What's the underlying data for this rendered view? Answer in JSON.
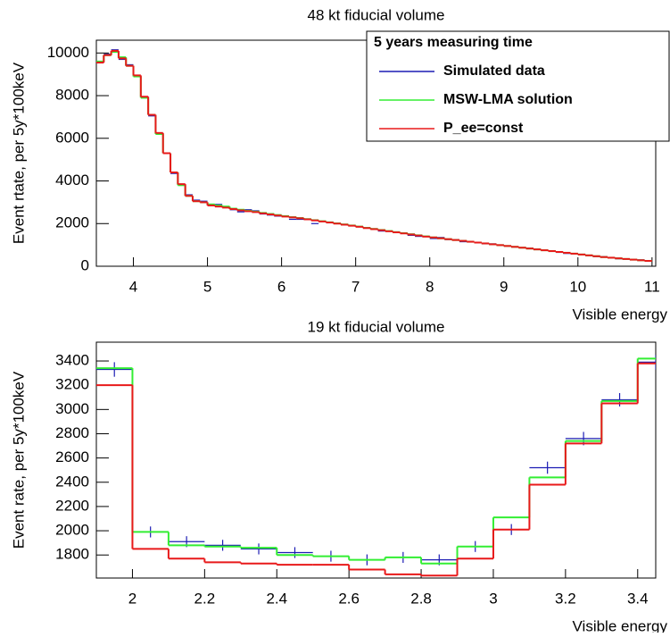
{
  "chart_data": [
    {
      "type": "histogram",
      "title": "48 kt fiducial volume",
      "x_label": "Visible energy",
      "y_label": "Event rtate, per 5y*100keV",
      "legend_title": "5 years measuring time",
      "legend": "upper right",
      "xlim": [
        3.5,
        11.05
      ],
      "ylim": [
        0,
        10600
      ],
      "xticks": [
        4,
        5,
        6,
        7,
        8,
        9,
        10,
        11
      ],
      "yticks": [
        0,
        2000,
        4000,
        6000,
        8000,
        10000
      ],
      "bins": [
        3.5,
        3.6,
        3.7,
        3.8,
        3.9,
        4.0,
        4.1,
        4.2,
        4.3,
        4.4,
        4.5,
        4.6,
        4.7,
        4.8,
        4.9,
        5.0,
        5.1,
        5.2,
        5.3,
        5.4,
        5.5,
        5.6,
        5.7,
        5.8,
        5.9,
        6.0,
        6.1,
        6.2,
        6.3,
        6.4,
        6.5,
        6.6,
        6.7,
        6.8,
        6.9,
        7.0,
        7.1,
        7.2,
        7.3,
        7.4,
        7.5,
        7.6,
        7.7,
        7.8,
        7.9,
        8.0,
        8.1,
        8.2,
        8.3,
        8.4,
        8.5,
        8.6,
        8.7,
        8.8,
        8.9,
        9.0,
        9.1,
        9.2,
        9.3,
        9.4,
        9.5,
        9.6,
        9.7,
        9.8,
        9.9,
        10.0,
        10.1,
        10.2,
        10.3,
        10.4,
        10.5,
        10.6,
        10.7,
        10.8,
        10.9,
        11.0
      ],
      "series": [
        {
          "name": "Simulated data",
          "color": "#1c1cb4",
          "style": "markers",
          "values": [
            9550,
            9950,
            10150,
            9700,
            9450,
            8900,
            7950,
            7050,
            6200,
            5300,
            4350,
            3850,
            3350,
            3100,
            3050,
            2850,
            2900,
            2800,
            2650,
            2550,
            2650,
            2600,
            2450,
            2400,
            2350,
            2350,
            2200,
            2200,
            2200,
            2000,
            2100,
            2050,
            2000,
            1950,
            1900,
            1850,
            1800,
            1750,
            1650,
            1650,
            1600,
            1550,
            1450,
            1400,
            1400,
            1300,
            1350,
            1250,
            1250,
            1150,
            1150,
            1100,
            1050,
            1050,
            1000,
            950,
            900,
            870,
            850,
            800,
            750,
            700,
            650,
            600,
            600,
            550,
            500,
            450,
            450,
            400,
            350,
            350,
            300,
            300,
            250
          ]
        },
        {
          "name": "MSW-LMA solution",
          "color": "#33ee33",
          "style": "step",
          "values": [
            9600,
            9900,
            10050,
            9800,
            9400,
            8900,
            7900,
            7100,
            6200,
            5300,
            4400,
            3800,
            3300,
            3050,
            3000,
            2900,
            2850,
            2800,
            2700,
            2650,
            2600,
            2560,
            2500,
            2450,
            2400,
            2350,
            2300,
            2260,
            2210,
            2160,
            2110,
            2060,
            2010,
            1960,
            1910,
            1860,
            1800,
            1750,
            1700,
            1650,
            1600,
            1550,
            1500,
            1450,
            1400,
            1350,
            1310,
            1270,
            1230,
            1190,
            1150,
            1110,
            1070,
            1030,
            990,
            950,
            910,
            870,
            830,
            790,
            750,
            710,
            670,
            630,
            590,
            550,
            510,
            470,
            430,
            400,
            370,
            340,
            310,
            280,
            250
          ]
        },
        {
          "name": "P_ee=const",
          "color": "#e8191a",
          "style": "step",
          "values": [
            9550,
            9900,
            10100,
            9750,
            9400,
            8950,
            7950,
            7100,
            6250,
            5300,
            4400,
            3850,
            3300,
            3050,
            3000,
            2850,
            2800,
            2750,
            2680,
            2620,
            2580,
            2540,
            2480,
            2430,
            2380,
            2330,
            2290,
            2250,
            2200,
            2150,
            2100,
            2050,
            2000,
            1950,
            1900,
            1850,
            1790,
            1740,
            1690,
            1640,
            1590,
            1540,
            1490,
            1440,
            1390,
            1350,
            1310,
            1270,
            1230,
            1190,
            1150,
            1110,
            1070,
            1030,
            990,
            950,
            910,
            870,
            830,
            790,
            750,
            710,
            670,
            630,
            590,
            550,
            510,
            470,
            430,
            400,
            370,
            340,
            310,
            280,
            250
          ]
        }
      ]
    },
    {
      "type": "histogram",
      "title": "19 kt fiducial volume",
      "x_label": "Visible energy",
      "y_label": "Event rate, per 5y*100keV",
      "xlim": [
        1.9,
        3.45
      ],
      "ylim": [
        1610,
        3555
      ],
      "xticks": [
        2,
        2.2,
        2.4,
        2.6,
        2.8,
        3,
        3.2,
        3.4
      ],
      "yticks": [
        1800,
        2000,
        2200,
        2400,
        2600,
        2800,
        3000,
        3200,
        3400
      ],
      "bins": [
        1.9,
        2.0,
        2.1,
        2.2,
        2.3,
        2.4,
        2.5,
        2.6,
        2.7,
        2.8,
        2.9,
        3.0,
        3.1,
        3.2,
        3.3,
        3.4,
        3.5
      ],
      "series": [
        {
          "color": "#1c1cb4",
          "style": "markers",
          "values": [
            3330,
            1990,
            1910,
            1880,
            1850,
            1820,
            1790,
            1760,
            1780,
            1760,
            1870,
            2010,
            2520,
            2760,
            3080,
            3390
          ],
          "errors": [
            60,
            45,
            45,
            45,
            45,
            45,
            45,
            45,
            45,
            45,
            45,
            45,
            50,
            55,
            55,
            60
          ]
        },
        {
          "color": "#33ee33",
          "style": "step",
          "values": [
            3340,
            1990,
            1880,
            1870,
            1860,
            1800,
            1790,
            1760,
            1780,
            1730,
            1870,
            2110,
            2440,
            2740,
            3070,
            3420
          ]
        },
        {
          "color": "#e8191a",
          "style": "step",
          "values": [
            3200,
            1850,
            1770,
            1740,
            1730,
            1720,
            1720,
            1680,
            1640,
            1630,
            1770,
            2010,
            2380,
            2720,
            3050,
            3380
          ]
        }
      ]
    }
  ]
}
